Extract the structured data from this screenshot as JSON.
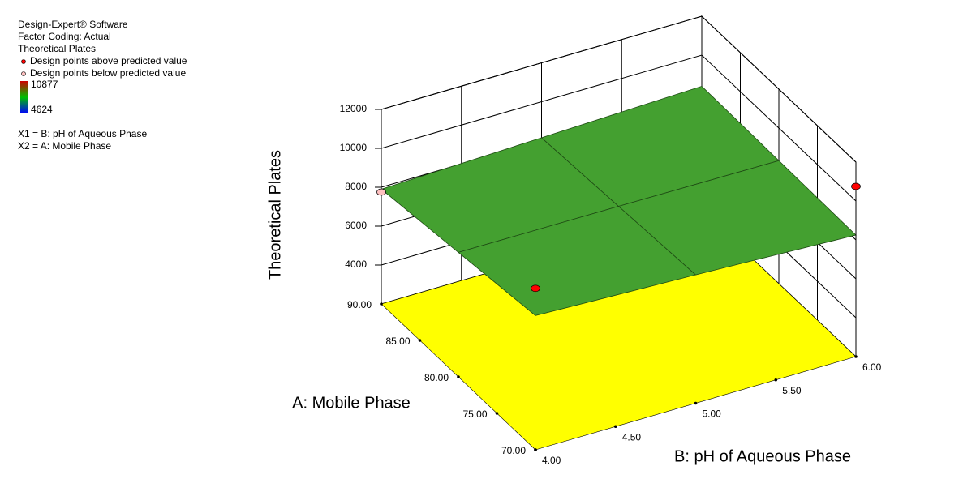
{
  "header": {
    "software": "Design-Expert® Software",
    "coding": "Factor Coding: Actual",
    "response": "Theoretical Plates",
    "above": "Design points above predicted value",
    "below": "Design points below predicted value",
    "x1": "X1 = B: pH of Aqueous Phase",
    "x2": "X2 = A: Mobile Phase"
  },
  "chart_data": {
    "type": "surface3d",
    "zlabel": "Theoretical Plates",
    "alabel": "A: Mobile Phase",
    "blabel": "B: pH of Aqueous Phase",
    "alim": [
      70,
      90
    ],
    "blim": [
      4,
      6
    ],
    "zlim": [
      2000,
      12000
    ],
    "aticks": [
      {
        "value": 70,
        "label": "70.00"
      },
      {
        "value": 75,
        "label": "75.00"
      },
      {
        "value": 80,
        "label": "80.00"
      },
      {
        "value": 85,
        "label": "85.00"
      },
      {
        "value": 90,
        "label": "90.00"
      }
    ],
    "bticks": [
      {
        "value": 4,
        "label": "4.00"
      },
      {
        "value": 4.5,
        "label": "4.50"
      },
      {
        "value": 5,
        "label": "5.00"
      },
      {
        "value": 5.5,
        "label": "5.50"
      },
      {
        "value": 6,
        "label": "6.00"
      }
    ],
    "zticks": [
      4000,
      6000,
      8000,
      10000,
      12000
    ],
    "colorbar": {
      "max": 10877,
      "min": 4624,
      "colors": [
        "#d00000",
        "#00c000",
        "#0000ff"
      ]
    },
    "surface": {
      "a": [
        70,
        80,
        90
      ],
      "b": [
        4,
        5,
        6
      ],
      "z": [
        [
          8900,
          8600,
          8250
        ],
        [
          8400,
          8375,
          8325
        ],
        [
          7900,
          8150,
          8400
        ]
      ],
      "color": "#44a030"
    },
    "floor_color": "#ffff00",
    "points": [
      {
        "a": 70,
        "b": 4,
        "z": 10300,
        "status": "above"
      },
      {
        "a": 70,
        "b": 6,
        "z": 10750,
        "status": "above"
      },
      {
        "a": 90,
        "b": 4,
        "z": 7750,
        "status": "below"
      }
    ],
    "point_colors": {
      "above": "#ff0000",
      "below": "#ffc0c0"
    }
  }
}
